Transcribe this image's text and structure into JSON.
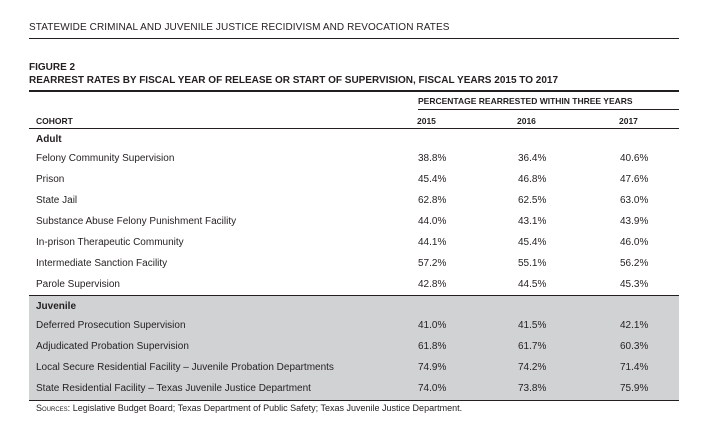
{
  "header": {
    "title": "STATEWIDE CRIMINAL AND JUVENILE JUSTICE RECIDIVISM AND REVOCATION RATES"
  },
  "figure": {
    "number": "FIGURE 2",
    "title": "REARREST RATES BY FISCAL YEAR OF RELEASE OR START OF SUPERVISION, FISCAL YEARS 2015 TO 2017",
    "group_header": "PERCENTAGE REARRESTED WITHIN THREE YEARS",
    "columns": [
      "COHORT",
      "2015",
      "2016",
      "2017"
    ]
  },
  "sections": [
    {
      "label": "Adult",
      "rows": [
        {
          "cohort": "Felony Community Supervision",
          "v2015": "38.8%",
          "v2016": "36.4%",
          "v2017": "40.6%"
        },
        {
          "cohort": "Prison",
          "v2015": "45.4%",
          "v2016": "46.8%",
          "v2017": "47.6%"
        },
        {
          "cohort": "State Jail",
          "v2015": "62.8%",
          "v2016": "62.5%",
          "v2017": "63.0%"
        },
        {
          "cohort": "Substance Abuse Felony Punishment Facility",
          "v2015": "44.0%",
          "v2016": "43.1%",
          "v2017": "43.9%"
        },
        {
          "cohort": "In-prison Therapeutic Community",
          "v2015": "44.1%",
          "v2016": "45.4%",
          "v2017": "46.0%"
        },
        {
          "cohort": "Intermediate Sanction Facility",
          "v2015": "57.2%",
          "v2016": "55.1%",
          "v2017": "56.2%"
        },
        {
          "cohort": "Parole Supervision",
          "v2015": "42.8%",
          "v2016": "44.5%",
          "v2017": "45.3%"
        }
      ]
    },
    {
      "label": "Juvenile",
      "shade_color": "#d1d2d4",
      "rows": [
        {
          "cohort": "Deferred Prosecution Supervision",
          "v2015": "41.0%",
          "v2016": "41.5%",
          "v2017": "42.1%"
        },
        {
          "cohort": "Adjudicated Probation Supervision",
          "v2015": "61.8%",
          "v2016": "61.7%",
          "v2017": "60.3%"
        },
        {
          "cohort": "Local Secure Residential Facility – Juvenile Probation Departments",
          "v2015": "74.9%",
          "v2016": "74.2%",
          "v2017": "71.4%"
        },
        {
          "cohort": "State Residential Facility – Texas Juvenile Justice Department",
          "v2015": "74.0%",
          "v2016": "73.8%",
          "v2017": "75.9%"
        }
      ]
    }
  ],
  "sources": {
    "label": "Sources:",
    "text": "Legislative Budget Board; Texas Department of Public Safety; Texas Juvenile Justice Department."
  }
}
